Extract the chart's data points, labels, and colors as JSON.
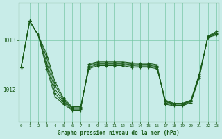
{
  "title": "Graphe pression niveau de la mer (hPa)",
  "bg_color": "#c8ece8",
  "plot_bg_color": "#c8ece8",
  "grid_color": "#70c4a0",
  "line_color": "#1a5c1a",
  "marker_color": "#1a5c1a",
  "x_ticks": [
    0,
    1,
    2,
    3,
    4,
    5,
    6,
    7,
    8,
    9,
    10,
    11,
    12,
    13,
    14,
    15,
    16,
    17,
    18,
    19,
    20,
    21,
    22,
    23
  ],
  "yticks": [
    1012,
    1013
  ],
  "ylim": [
    1011.35,
    1013.75
  ],
  "xlim": [
    -0.3,
    23.3
  ],
  "series": [
    [
      1012.45,
      1013.38,
      1013.1,
      1012.72,
      1012.15,
      1011.82,
      1011.65,
      1011.65,
      1012.42,
      1012.48,
      1012.48,
      1012.48,
      1012.48,
      1012.45,
      1012.45,
      1012.45,
      1012.42,
      1011.78,
      1011.72,
      1011.72,
      1011.78,
      1012.32,
      1013.05,
      1013.1
    ],
    [
      1012.45,
      1013.38,
      1013.1,
      1012.65,
      1012.08,
      1011.79,
      1011.63,
      1011.63,
      1012.45,
      1012.5,
      1012.5,
      1012.5,
      1012.5,
      1012.48,
      1012.47,
      1012.47,
      1012.44,
      1011.76,
      1011.71,
      1011.71,
      1011.77,
      1012.3,
      1013.05,
      1013.12
    ],
    [
      1012.45,
      1013.38,
      1013.1,
      1012.55,
      1012.0,
      1011.76,
      1011.62,
      1011.62,
      1012.48,
      1012.52,
      1012.52,
      1012.52,
      1012.52,
      1012.5,
      1012.49,
      1012.49,
      1012.46,
      1011.75,
      1011.7,
      1011.7,
      1011.76,
      1012.28,
      1013.06,
      1013.14
    ],
    [
      1012.45,
      1013.38,
      1013.1,
      1012.48,
      1011.92,
      1011.73,
      1011.6,
      1011.6,
      1012.5,
      1012.54,
      1012.54,
      1012.54,
      1012.54,
      1012.52,
      1012.51,
      1012.51,
      1012.48,
      1011.73,
      1011.68,
      1011.68,
      1011.75,
      1012.26,
      1013.07,
      1013.15
    ],
    [
      1012.45,
      1013.38,
      1013.1,
      1012.42,
      1011.85,
      1011.7,
      1011.58,
      1011.58,
      1012.52,
      1012.56,
      1012.56,
      1012.56,
      1012.56,
      1012.54,
      1012.53,
      1012.53,
      1012.5,
      1011.7,
      1011.67,
      1011.67,
      1011.73,
      1012.24,
      1013.08,
      1013.17
    ]
  ]
}
